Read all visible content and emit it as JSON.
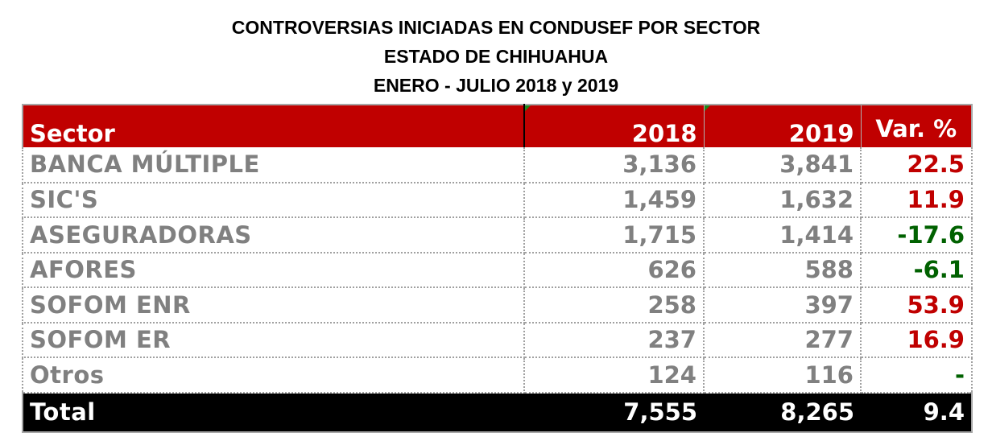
{
  "title": {
    "line1": "CONTROVERSIAS INICIADAS EN CONDUSEF POR SECTOR",
    "line2": "ESTADO DE CHIHUAHUA",
    "line3": "ENERO - JULIO 2018 y 2019"
  },
  "table": {
    "headers": {
      "sector": "Sector",
      "y2018": "2018",
      "y2019": "2019",
      "var": "Var. %"
    },
    "rows": [
      {
        "sector": "BANCA MÚLTIPLE",
        "y2018": "3,136",
        "y2019": "3,841",
        "var": "22.5",
        "trend": "up"
      },
      {
        "sector": "SIC'S",
        "y2018": "1,459",
        "y2019": "1,632",
        "var": "11.9",
        "trend": "up"
      },
      {
        "sector": "ASEGURADORAS",
        "y2018": "1,715",
        "y2019": "1,414",
        "var": "-17.6",
        "trend": "down"
      },
      {
        "sector": "AFORES",
        "y2018": "626",
        "y2019": "588",
        "var": "-6.1",
        "trend": "down"
      },
      {
        "sector": "SOFOM ENR",
        "y2018": "258",
        "y2019": "397",
        "var": "53.9",
        "trend": "up"
      },
      {
        "sector": "SOFOM ER",
        "y2018": "237",
        "y2019": "277",
        "var": "16.9",
        "trend": "up"
      },
      {
        "sector": "Otros",
        "y2018": "124",
        "y2019": "116",
        "var": "-",
        "trend": "none"
      }
    ],
    "total": {
      "sector": "Total",
      "y2018": "7,555",
      "y2019": "8,265",
      "var": "9.4"
    }
  },
  "colors": {
    "header_bg": "#c00000",
    "increase": "#c00000",
    "decrease": "#006100",
    "body_text": "#808080",
    "total_bg": "#000000"
  }
}
